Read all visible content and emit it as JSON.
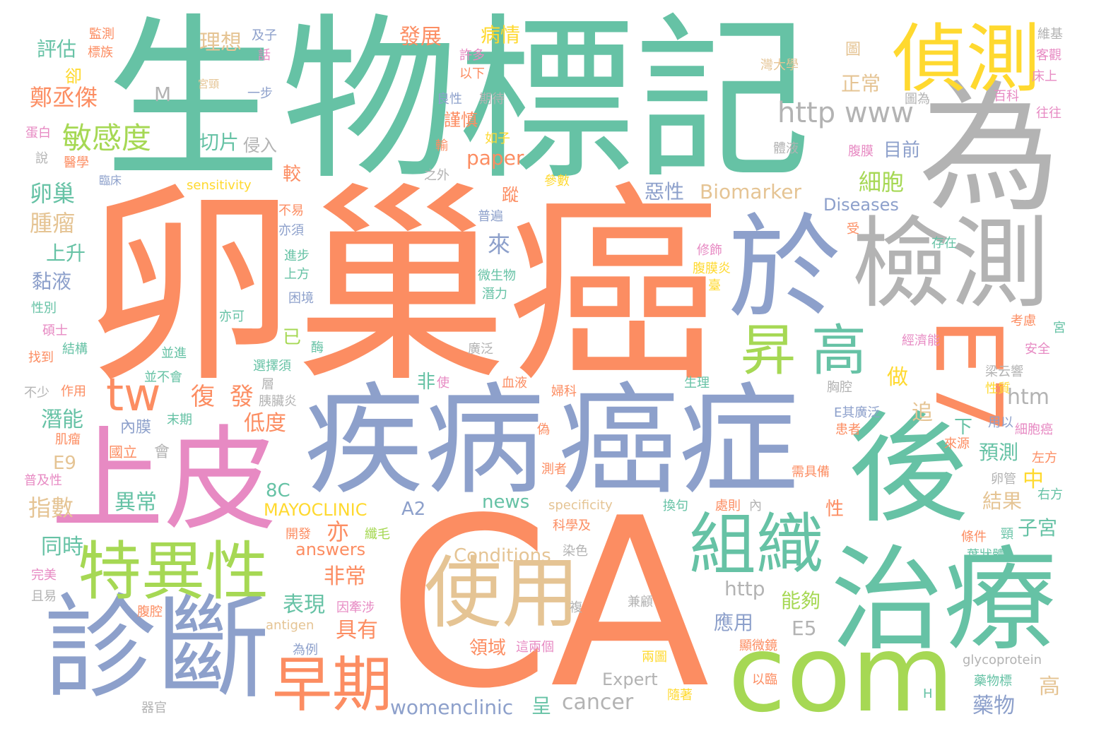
{
  "palette": {
    "teal": "#66c2a5",
    "orange": "#fc8d62",
    "blue": "#8da0cb",
    "pink": "#e78ac3",
    "green": "#a6d854",
    "yellow": "#ffd92f",
    "tan": "#e5c494",
    "gray": "#b3b3b3"
  },
  "words": [
    {
      "text": "卵巢癌",
      "color": "orange"
    },
    {
      "text": "CA",
      "color": "orange"
    },
    {
      "text": "生物標記",
      "color": "teal"
    },
    {
      "text": "為",
      "color": "gray"
    },
    {
      "text": "疾病",
      "color": "blue"
    },
    {
      "text": "癌症",
      "color": "blue"
    },
    {
      "text": "上皮",
      "color": "pink"
    },
    {
      "text": "診斷",
      "color": "blue"
    },
    {
      "text": "com",
      "color": "green"
    },
    {
      "text": "後",
      "color": "teal"
    },
    {
      "text": "治療",
      "color": "teal"
    },
    {
      "text": "於",
      "color": "blue"
    },
    {
      "text": "檢測",
      "color": "gray"
    },
    {
      "text": "偵測",
      "color": "yellow"
    },
    {
      "text": "E7",
      "color": "orange"
    },
    {
      "text": "使用",
      "color": "tan"
    },
    {
      "text": "組織",
      "color": "teal"
    },
    {
      "text": "特異性",
      "color": "green"
    },
    {
      "text": "早期",
      "color": "orange"
    },
    {
      "text": "昇",
      "color": "green"
    },
    {
      "text": "高",
      "color": "teal"
    },
    {
      "text": "tw",
      "color": "orange"
    },
    {
      "text": "敏感度",
      "color": "green"
    },
    {
      "text": "http www",
      "color": "gray"
    },
    {
      "text": "鄭丞傑",
      "color": "orange"
    },
    {
      "text": "卵巢",
      "color": "teal"
    },
    {
      "text": "腫瘤",
      "color": "tan"
    },
    {
      "text": "理想",
      "color": "tan"
    },
    {
      "text": "評估",
      "color": "teal"
    },
    {
      "text": "發展",
      "color": "orange"
    },
    {
      "text": "病情",
      "color": "yellow"
    },
    {
      "text": "切片",
      "color": "teal"
    },
    {
      "text": "侵入",
      "color": "gray"
    },
    {
      "text": "細胞",
      "color": "green"
    },
    {
      "text": "正常",
      "color": "tan"
    },
    {
      "text": "目前",
      "color": "blue"
    },
    {
      "text": "Biomarker",
      "color": "tan"
    },
    {
      "text": "Diseases",
      "color": "blue"
    },
    {
      "text": "惡性",
      "color": "blue"
    },
    {
      "text": "paper",
      "color": "orange"
    },
    {
      "text": "謹慎",
      "color": "orange"
    },
    {
      "text": "上升",
      "color": "teal"
    },
    {
      "text": "黏液",
      "color": "blue"
    },
    {
      "text": "來",
      "color": "blue"
    },
    {
      "text": "復",
      "color": "orange"
    },
    {
      "text": "發",
      "color": "orange"
    },
    {
      "text": "潛能",
      "color": "teal"
    },
    {
      "text": "低度",
      "color": "orange"
    },
    {
      "text": "htm",
      "color": "gray"
    },
    {
      "text": "做",
      "color": "yellow"
    },
    {
      "text": "追",
      "color": "tan"
    },
    {
      "text": "預測",
      "color": "teal"
    },
    {
      "text": "E9",
      "color": "tan"
    },
    {
      "text": "8C",
      "color": "teal"
    },
    {
      "text": "指數",
      "color": "tan"
    },
    {
      "text": "異常",
      "color": "teal"
    },
    {
      "text": "MAYOCLINIC",
      "color": "yellow"
    },
    {
      "text": "A2",
      "color": "blue"
    },
    {
      "text": "news",
      "color": "teal"
    },
    {
      "text": "結果",
      "color": "tan"
    },
    {
      "text": "子宮",
      "color": "teal"
    },
    {
      "text": "中",
      "color": "yellow"
    },
    {
      "text": "同時",
      "color": "teal"
    },
    {
      "text": "亦",
      "color": "orange"
    },
    {
      "text": "answers",
      "color": "orange"
    },
    {
      "text": "Conditions",
      "color": "tan"
    },
    {
      "text": "非常",
      "color": "orange"
    },
    {
      "text": "表現",
      "color": "teal"
    },
    {
      "text": "具有",
      "color": "orange"
    },
    {
      "text": "能夠",
      "color": "green"
    },
    {
      "text": "http",
      "color": "gray"
    },
    {
      "text": "應用",
      "color": "blue"
    },
    {
      "text": "E5",
      "color": "gray"
    },
    {
      "text": "領域",
      "color": "orange"
    },
    {
      "text": "womenclinic",
      "color": "blue"
    },
    {
      "text": "cancer",
      "color": "gray"
    },
    {
      "text": "Expert",
      "color": "gray"
    },
    {
      "text": "藥物",
      "color": "blue"
    },
    {
      "text": "高",
      "color": "tan"
    },
    {
      "text": "glycoprotein",
      "color": "gray"
    },
    {
      "text": "antigen",
      "color": "tan"
    },
    {
      "text": "specificity",
      "color": "tan"
    },
    {
      "text": "sensitivity",
      "color": "yellow"
    },
    {
      "text": "較",
      "color": "orange"
    },
    {
      "text": "M",
      "color": "gray"
    },
    {
      "text": "卻",
      "color": "yellow"
    },
    {
      "text": "已",
      "color": "green"
    },
    {
      "text": "非",
      "color": "teal"
    },
    {
      "text": "下",
      "color": "teal"
    },
    {
      "text": "呈",
      "color": "teal"
    },
    {
      "text": "會",
      "color": "gray"
    },
    {
      "text": "性",
      "color": "orange"
    },
    {
      "text": "圖",
      "color": "tan"
    },
    {
      "text": "蹤",
      "color": "orange"
    },
    {
      "text": "內膜",
      "color": "blue"
    },
    {
      "text": "國立",
      "color": "orange"
    },
    {
      "text": "監測",
      "color": "orange"
    },
    {
      "text": "標族",
      "color": "orange"
    },
    {
      "text": "及子",
      "color": "blue"
    },
    {
      "text": "話",
      "color": "pink"
    },
    {
      "text": "宮頸",
      "color": "tan"
    },
    {
      "text": "一步",
      "color": "blue"
    },
    {
      "text": "許多",
      "color": "pink"
    },
    {
      "text": "以下",
      "color": "orange"
    },
    {
      "text": "良性",
      "color": "blue"
    },
    {
      "text": "期待",
      "color": "gray"
    },
    {
      "text": "如子",
      "color": "yellow"
    },
    {
      "text": "輸",
      "color": "orange"
    },
    {
      "text": "蛋白",
      "color": "pink"
    },
    {
      "text": "說",
      "color": "gray"
    },
    {
      "text": "醫學",
      "color": "orange"
    },
    {
      "text": "臨床",
      "color": "blue"
    },
    {
      "text": "之外",
      "color": "gray"
    },
    {
      "text": "維基",
      "color": "gray"
    },
    {
      "text": "客觀",
      "color": "pink"
    },
    {
      "text": "床上",
      "color": "pink"
    },
    {
      "text": "灣大學",
      "color": "tan"
    },
    {
      "text": "圖為",
      "color": "gray"
    },
    {
      "text": "百科",
      "color": "pink"
    },
    {
      "text": "往往",
      "color": "pink"
    },
    {
      "text": "體液",
      "color": "gray"
    },
    {
      "text": "腹膜",
      "color": "pink"
    },
    {
      "text": "參數",
      "color": "yellow"
    },
    {
      "text": "存在",
      "color": "teal"
    },
    {
      "text": "普遍",
      "color": "blue"
    },
    {
      "text": "不易",
      "color": "orange"
    },
    {
      "text": "亦須",
      "color": "blue"
    },
    {
      "text": "進步",
      "color": "teal"
    },
    {
      "text": "上方",
      "color": "teal"
    },
    {
      "text": "困境",
      "color": "blue"
    },
    {
      "text": "微生物",
      "color": "teal"
    },
    {
      "text": "潛力",
      "color": "teal"
    },
    {
      "text": "修飾",
      "color": "pink"
    },
    {
      "text": "腹膜炎",
      "color": "yellow"
    },
    {
      "text": "受",
      "color": "orange"
    },
    {
      "text": "臺",
      "color": "yellow"
    },
    {
      "text": "性別",
      "color": "teal"
    },
    {
      "text": "亦可",
      "color": "teal"
    },
    {
      "text": "碩士",
      "color": "pink"
    },
    {
      "text": "結構",
      "color": "teal"
    },
    {
      "text": "並進",
      "color": "teal"
    },
    {
      "text": "找到",
      "color": "orange"
    },
    {
      "text": "並不會",
      "color": "teal"
    },
    {
      "text": "廣泛",
      "color": "gray"
    },
    {
      "text": "酶",
      "color": "teal"
    },
    {
      "text": "經濟能",
      "color": "pink"
    },
    {
      "text": "考慮",
      "color": "orange"
    },
    {
      "text": "宮",
      "color": "teal"
    },
    {
      "text": "安全",
      "color": "pink"
    },
    {
      "text": "梁云響",
      "color": "gray"
    },
    {
      "text": "性質",
      "color": "yellow"
    },
    {
      "text": "選擇須",
      "color": "teal"
    },
    {
      "text": "不少",
      "color": "gray"
    },
    {
      "text": "作用",
      "color": "orange"
    },
    {
      "text": "層",
      "color": "gray"
    },
    {
      "text": "胰臟炎",
      "color": "gray"
    },
    {
      "text": "生理",
      "color": "teal"
    },
    {
      "text": "婦科",
      "color": "orange"
    },
    {
      "text": "血液",
      "color": "orange"
    },
    {
      "text": "使",
      "color": "pink"
    },
    {
      "text": "胸腔",
      "color": "gray"
    },
    {
      "text": "E其廣泛",
      "color": "blue"
    },
    {
      "text": "用以",
      "color": "blue"
    },
    {
      "text": "細胞癌",
      "color": "pink"
    },
    {
      "text": "末期",
      "color": "teal"
    },
    {
      "text": "肌瘤",
      "color": "orange"
    },
    {
      "text": "偽",
      "color": "orange"
    },
    {
      "text": "患者",
      "color": "orange"
    },
    {
      "text": "來源",
      "color": "orange"
    },
    {
      "text": "左方",
      "color": "orange"
    },
    {
      "text": "普及性",
      "color": "pink"
    },
    {
      "text": "測者",
      "color": "orange"
    },
    {
      "text": "需具備",
      "color": "orange"
    },
    {
      "text": "卵管",
      "color": "gray"
    },
    {
      "text": "右方",
      "color": "teal"
    },
    {
      "text": "換句",
      "color": "teal"
    },
    {
      "text": "處則",
      "color": "orange"
    },
    {
      "text": "內",
      "color": "gray"
    },
    {
      "text": "科學及",
      "color": "orange"
    },
    {
      "text": "條件",
      "color": "orange"
    },
    {
      "text": "頸",
      "color": "teal"
    },
    {
      "text": "完美",
      "color": "pink"
    },
    {
      "text": "開發",
      "color": "orange"
    },
    {
      "text": "纖毛",
      "color": "green"
    },
    {
      "text": "染色",
      "color": "gray"
    },
    {
      "text": "葉狀體",
      "color": "teal"
    },
    {
      "text": "且易",
      "color": "gray"
    },
    {
      "text": "因牽涉",
      "color": "pink"
    },
    {
      "text": "複",
      "color": "gray"
    },
    {
      "text": "兼顧",
      "color": "gray"
    },
    {
      "text": "腹腔",
      "color": "orange"
    },
    {
      "text": "為例",
      "color": "blue"
    },
    {
      "text": "這兩個",
      "color": "pink"
    },
    {
      "text": "顯微鏡",
      "color": "orange"
    },
    {
      "text": "兩圖",
      "color": "yellow"
    },
    {
      "text": "以臨",
      "color": "orange"
    },
    {
      "text": "藥物標",
      "color": "teal"
    },
    {
      "text": "器官",
      "color": "gray"
    },
    {
      "text": "隨著",
      "color": "yellow"
    },
    {
      "text": "H",
      "color": "teal"
    }
  ]
}
